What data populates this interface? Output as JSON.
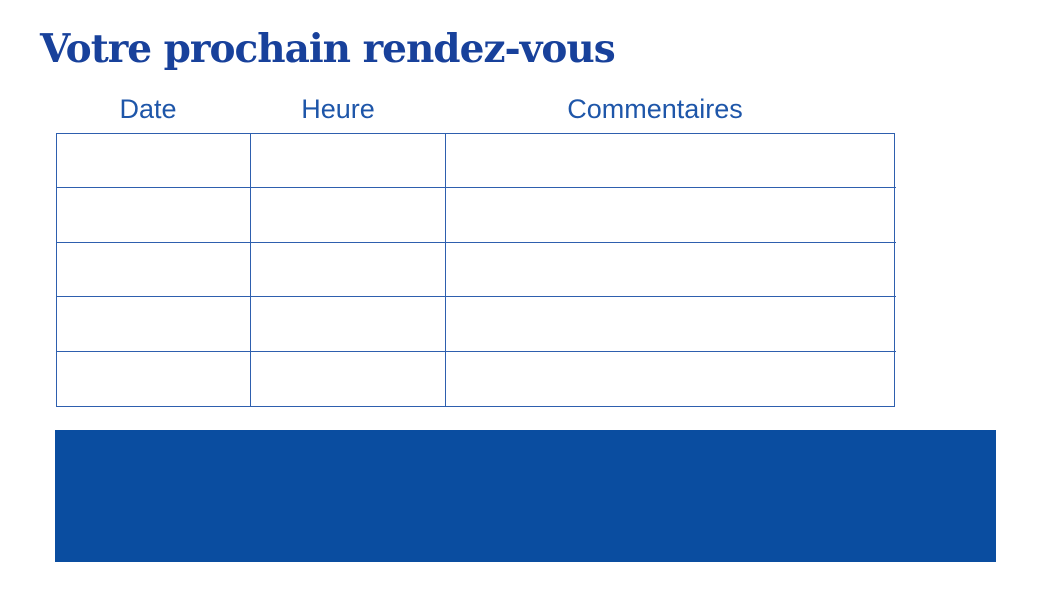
{
  "page": {
    "title": "Votre prochain rendez-vous"
  },
  "table": {
    "headers": [
      {
        "label": "Date"
      },
      {
        "label": "Heure"
      },
      {
        "label": "Commentaires"
      }
    ],
    "rows": [
      [
        "",
        "",
        ""
      ],
      [
        "",
        "",
        ""
      ],
      [
        "",
        "",
        ""
      ],
      [
        "",
        "",
        ""
      ],
      [
        "",
        "",
        ""
      ]
    ]
  },
  "colors": {
    "title": "#18419b",
    "header_text": "#1e56a9",
    "table_border": "#2e5fae",
    "accent_block": "#0a4da0"
  }
}
